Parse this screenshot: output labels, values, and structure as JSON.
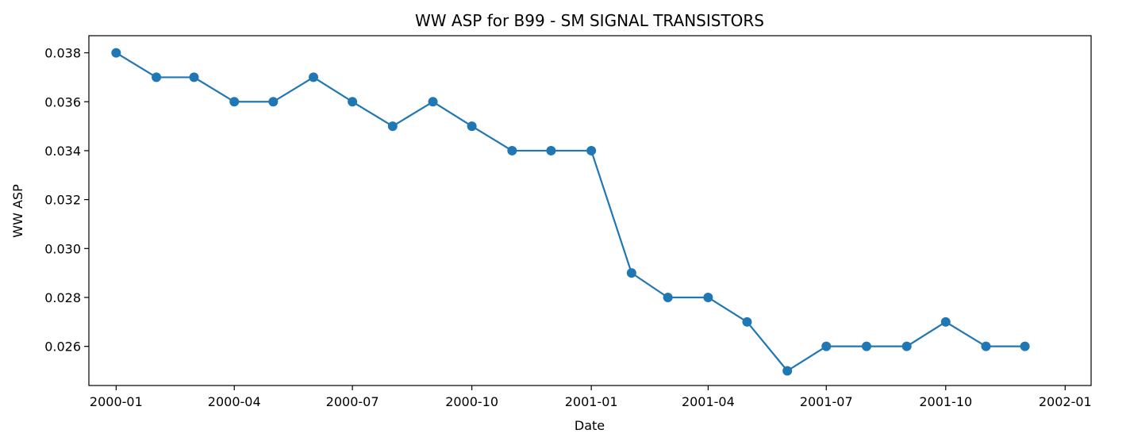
{
  "chart_data": {
    "type": "line",
    "title": "WW ASP for B99 - SM SIGNAL TRANSISTORS",
    "xlabel": "Date",
    "ylabel": "WW ASP",
    "x": [
      "2000-01",
      "2000-02",
      "2000-03",
      "2000-04",
      "2000-05",
      "2000-06",
      "2000-07",
      "2000-08",
      "2000-09",
      "2000-10",
      "2000-11",
      "2000-12",
      "2001-01",
      "2001-02",
      "2001-03",
      "2001-04",
      "2001-05",
      "2001-06",
      "2001-07",
      "2001-08",
      "2001-09",
      "2001-10",
      "2001-11",
      "2001-12"
    ],
    "series": [
      {
        "values": [
          0.038,
          0.037,
          0.037,
          0.036,
          0.036,
          0.037,
          0.036,
          0.035,
          0.036,
          0.035,
          0.034,
          0.034,
          0.034,
          0.029,
          0.028,
          0.028,
          0.027,
          0.025,
          0.026,
          0.026,
          0.026,
          0.027,
          0.026,
          0.026
        ],
        "color": "#1f77b4",
        "marker": "circle"
      }
    ],
    "xticks": [
      "2000-01",
      "2000-04",
      "2000-07",
      "2000-10",
      "2001-01",
      "2001-04",
      "2001-07",
      "2001-10",
      "2002-01"
    ],
    "yticks": [
      "0.026",
      "0.028",
      "0.030",
      "0.032",
      "0.034",
      "0.036",
      "0.038"
    ],
    "ylim": [
      0.0244,
      0.0387
    ],
    "xlim": [
      "1999-12-11",
      "2002-01-21"
    ],
    "grid": false,
    "legend": "none"
  }
}
